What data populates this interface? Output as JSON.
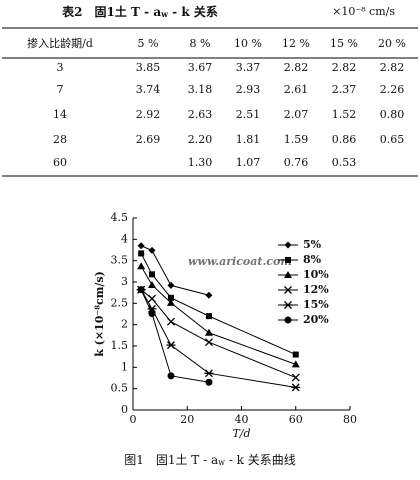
{
  "table": {
    "title": {
      "prefix": "表2　固1土 T - a",
      "sub": "w",
      "suffix": " - k 关系"
    },
    "unit": "×10⁻⁸ cm/s",
    "header": [
      "掺入比龄期/d",
      "5 %",
      "8 %",
      "10 %",
      "12 %",
      "15 %",
      "20 %"
    ],
    "rows": [
      [
        "3",
        "3.85",
        "3.67",
        "3.37",
        "2.82",
        "2.82",
        "2.82"
      ],
      [
        "7",
        "3.74",
        "3.18",
        "2.93",
        "2.61",
        "2.37",
        "2.26"
      ],
      [
        "14",
        "2.92",
        "2.63",
        "2.51",
        "2.07",
        "1.52",
        "0.80"
      ],
      [
        "28",
        "2.69",
        "2.20",
        "1.81",
        "1.59",
        "0.86",
        "0.65"
      ],
      [
        "60",
        null,
        "1.30",
        "1.07",
        "0.76",
        "0.53",
        null
      ]
    ]
  },
  "chart_data": {
    "type": "line",
    "x_label": "T/d",
    "y_label": "k (×10⁻⁸cm/s)",
    "watermark": "www.aricoat.com",
    "x": [
      3,
      7,
      14,
      28,
      60
    ],
    "xlim": [
      0,
      80
    ],
    "xticks": [
      0,
      20,
      40,
      60,
      80
    ],
    "ylim": [
      0,
      4.5
    ],
    "yticks": [
      0,
      0.5,
      1,
      1.5,
      2,
      2.5,
      3,
      3.5,
      4,
      4.5
    ],
    "series": [
      {
        "name": "5%",
        "marker": "diamond",
        "color": "#000000",
        "values": [
          3.85,
          3.74,
          2.92,
          2.69,
          null
        ]
      },
      {
        "name": "8%",
        "marker": "square",
        "color": "#000000",
        "values": [
          3.67,
          3.18,
          2.63,
          2.2,
          1.3
        ]
      },
      {
        "name": "10%",
        "marker": "triangle",
        "color": "#000000",
        "values": [
          3.37,
          2.93,
          2.51,
          1.81,
          1.07
        ]
      },
      {
        "name": "12%",
        "marker": "x",
        "color": "#000000",
        "values": [
          2.82,
          2.61,
          2.07,
          1.59,
          0.76
        ]
      },
      {
        "name": "15%",
        "marker": "asterisk",
        "color": "#000000",
        "values": [
          2.82,
          2.37,
          1.52,
          0.86,
          0.53
        ]
      },
      {
        "name": "20%",
        "marker": "circle",
        "color": "#000000",
        "values": [
          2.82,
          2.26,
          0.8,
          0.65,
          null
        ]
      }
    ]
  },
  "caption": {
    "prefix": "图1　固1土 T - a",
    "sub": "w",
    "suffix": " - k 关系曲线"
  }
}
